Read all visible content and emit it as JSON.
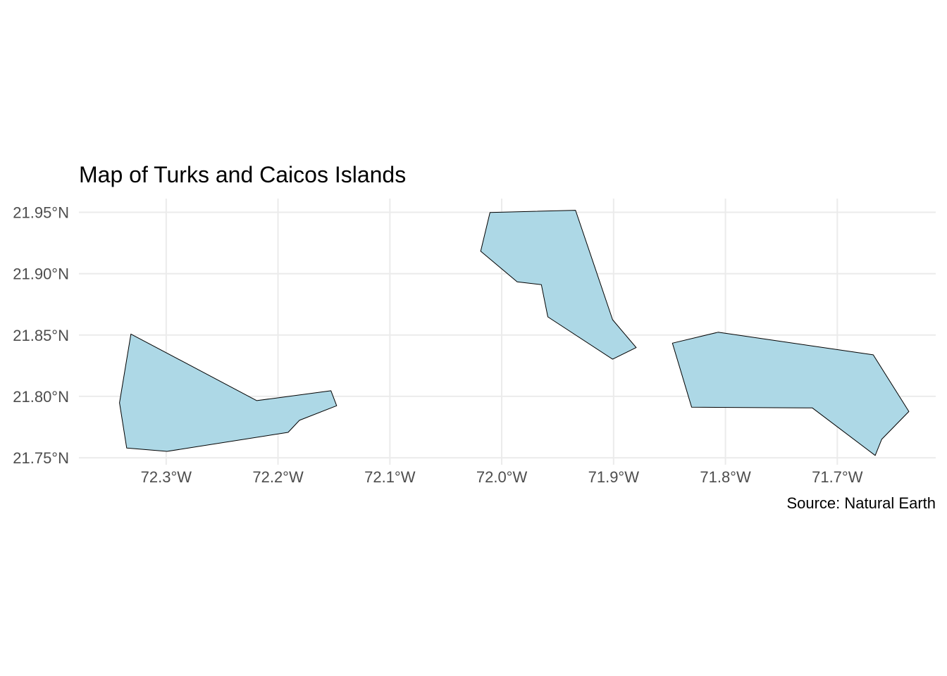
{
  "chart_data": {
    "type": "map",
    "title": "Map of Turks and Caicos Islands",
    "caption": "Source: Natural Earth",
    "xlabel": "",
    "ylabel": "",
    "xlim": [
      -72.378,
      -71.612
    ],
    "ylim": [
      21.7443,
      21.9612
    ],
    "grid": true,
    "legend": "none",
    "fill_color": "#add8e6",
    "stroke_color": "#000000",
    "x_ticks": [
      {
        "value": -72.3,
        "label": "72.3°W"
      },
      {
        "value": -72.2,
        "label": "72.2°W"
      },
      {
        "value": -72.1,
        "label": "72.1°W"
      },
      {
        "value": -72.0,
        "label": "72.0°W"
      },
      {
        "value": -71.9,
        "label": "71.9°W"
      },
      {
        "value": -71.8,
        "label": "71.8°W"
      },
      {
        "value": -71.7,
        "label": "71.7°W"
      }
    ],
    "y_ticks": [
      {
        "value": 21.95,
        "label": "21.95°N"
      },
      {
        "value": 21.9,
        "label": "21.90°N"
      },
      {
        "value": 21.85,
        "label": "21.85°N"
      },
      {
        "value": 21.8,
        "label": "21.80°N"
      },
      {
        "value": 21.75,
        "label": "21.75°N"
      }
    ],
    "polygons": [
      {
        "coords": [
          [
            -72.3315,
            21.8508
          ],
          [
            -72.219,
            21.7966
          ],
          [
            -72.1527,
            21.8046
          ],
          [
            -72.1476,
            21.7924
          ],
          [
            -72.1808,
            21.7805
          ],
          [
            -72.191,
            21.7707
          ],
          [
            -72.2992,
            21.7552
          ],
          [
            -72.3353,
            21.7579
          ],
          [
            -72.3417,
            21.7948
          ],
          [
            -72.3315,
            21.8508
          ]
        ]
      },
      {
        "coords": [
          [
            -72.0105,
            21.9499
          ],
          [
            -71.934,
            21.9517
          ],
          [
            -71.9009,
            21.8625
          ],
          [
            -71.8798,
            21.8398
          ],
          [
            -71.9009,
            21.8303
          ],
          [
            -71.9588,
            21.8648
          ],
          [
            -71.9646,
            21.8911
          ],
          [
            -71.9862,
            21.8934
          ],
          [
            -72.0188,
            21.9183
          ],
          [
            -72.0105,
            21.9499
          ]
        ]
      },
      {
        "coords": [
          [
            -71.8474,
            21.8434
          ],
          [
            -71.8066,
            21.8523
          ],
          [
            -71.6679,
            21.8339
          ],
          [
            -71.636,
            21.7877
          ],
          [
            -71.6603,
            21.765
          ],
          [
            -71.6661,
            21.7519
          ],
          [
            -71.7223,
            21.7906
          ],
          [
            -71.8302,
            21.7912
          ],
          [
            -71.8474,
            21.8434
          ]
        ]
      }
    ]
  }
}
